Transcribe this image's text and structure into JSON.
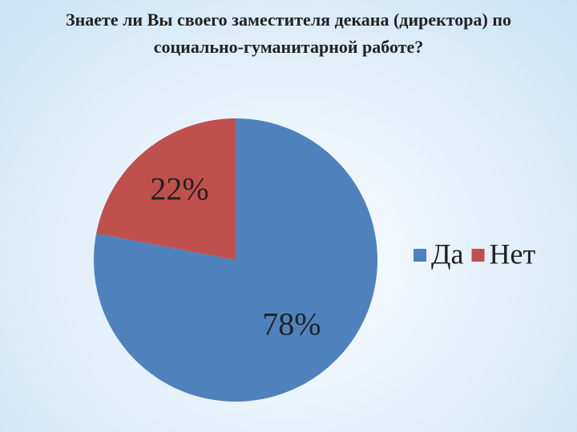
{
  "chart_data": {
    "type": "pie",
    "title": "Знаете ли Вы своего заместителя декана (директора) по социально-гуманитарной работе?",
    "categories": [
      "Да",
      "Нет"
    ],
    "values": [
      78,
      22
    ],
    "value_labels": [
      "78%",
      "22%"
    ],
    "colors": [
      "#4f81bd",
      "#c0504d"
    ],
    "legend": "right"
  }
}
